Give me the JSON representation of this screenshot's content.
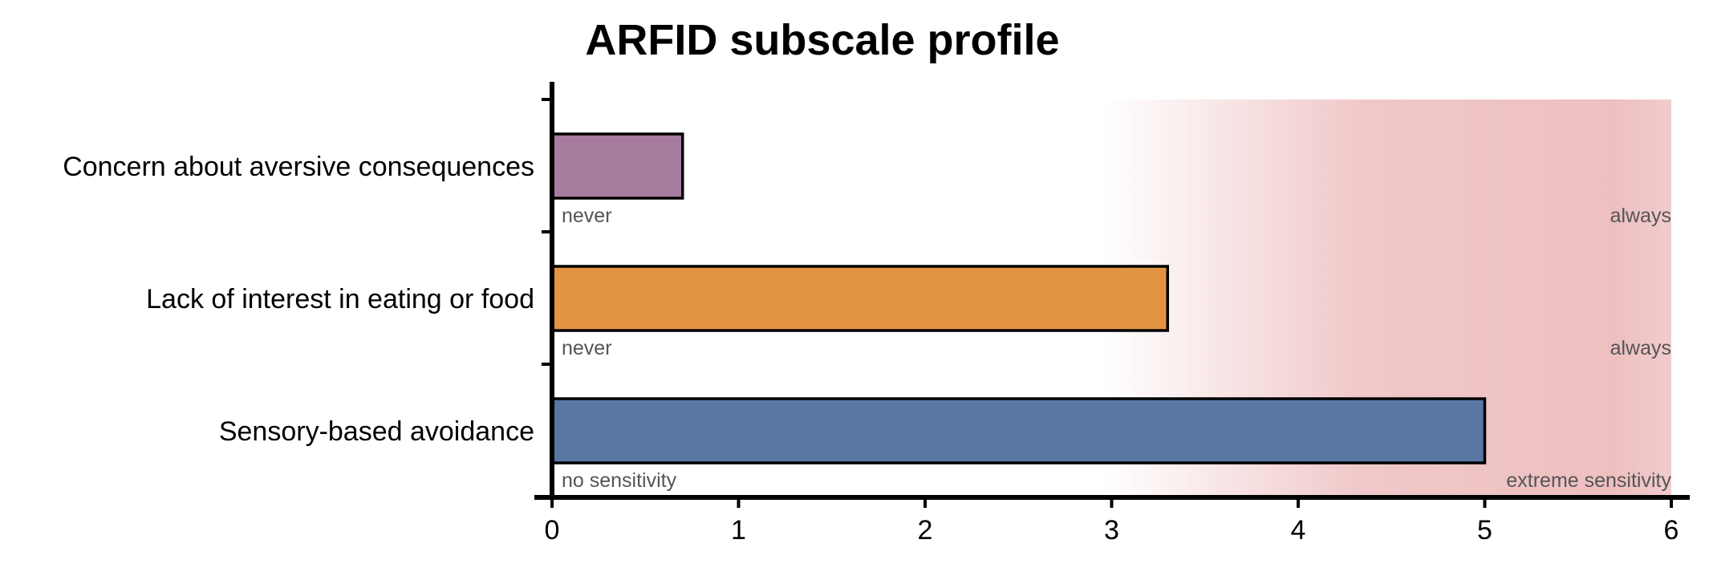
{
  "chart_data": {
    "type": "bar",
    "orientation": "horizontal",
    "title": "ARFID subscale profile",
    "xlabel": "",
    "ylabel": "",
    "xlim": [
      0,
      6
    ],
    "x_ticks": [
      "0",
      "1",
      "2",
      "3",
      "4",
      "5",
      "6"
    ],
    "grid": false,
    "legend": "none",
    "categories": [
      "Concern about aversive consequences",
      "Lack of interest in eating or food",
      "Sensory-based avoidance"
    ],
    "values": [
      0.7,
      3.3,
      5.0
    ],
    "colors": [
      "#a87c9f",
      "#e39443",
      "#5877a3"
    ],
    "scale_anchors": [
      {
        "low": "never",
        "high": "always"
      },
      {
        "low": "never",
        "high": "always"
      },
      {
        "low": "no sensitivity",
        "high": "extreme sensitivity"
      }
    ],
    "highlight_region": {
      "from": 3,
      "to": 6,
      "color": "#eebfc0"
    }
  }
}
